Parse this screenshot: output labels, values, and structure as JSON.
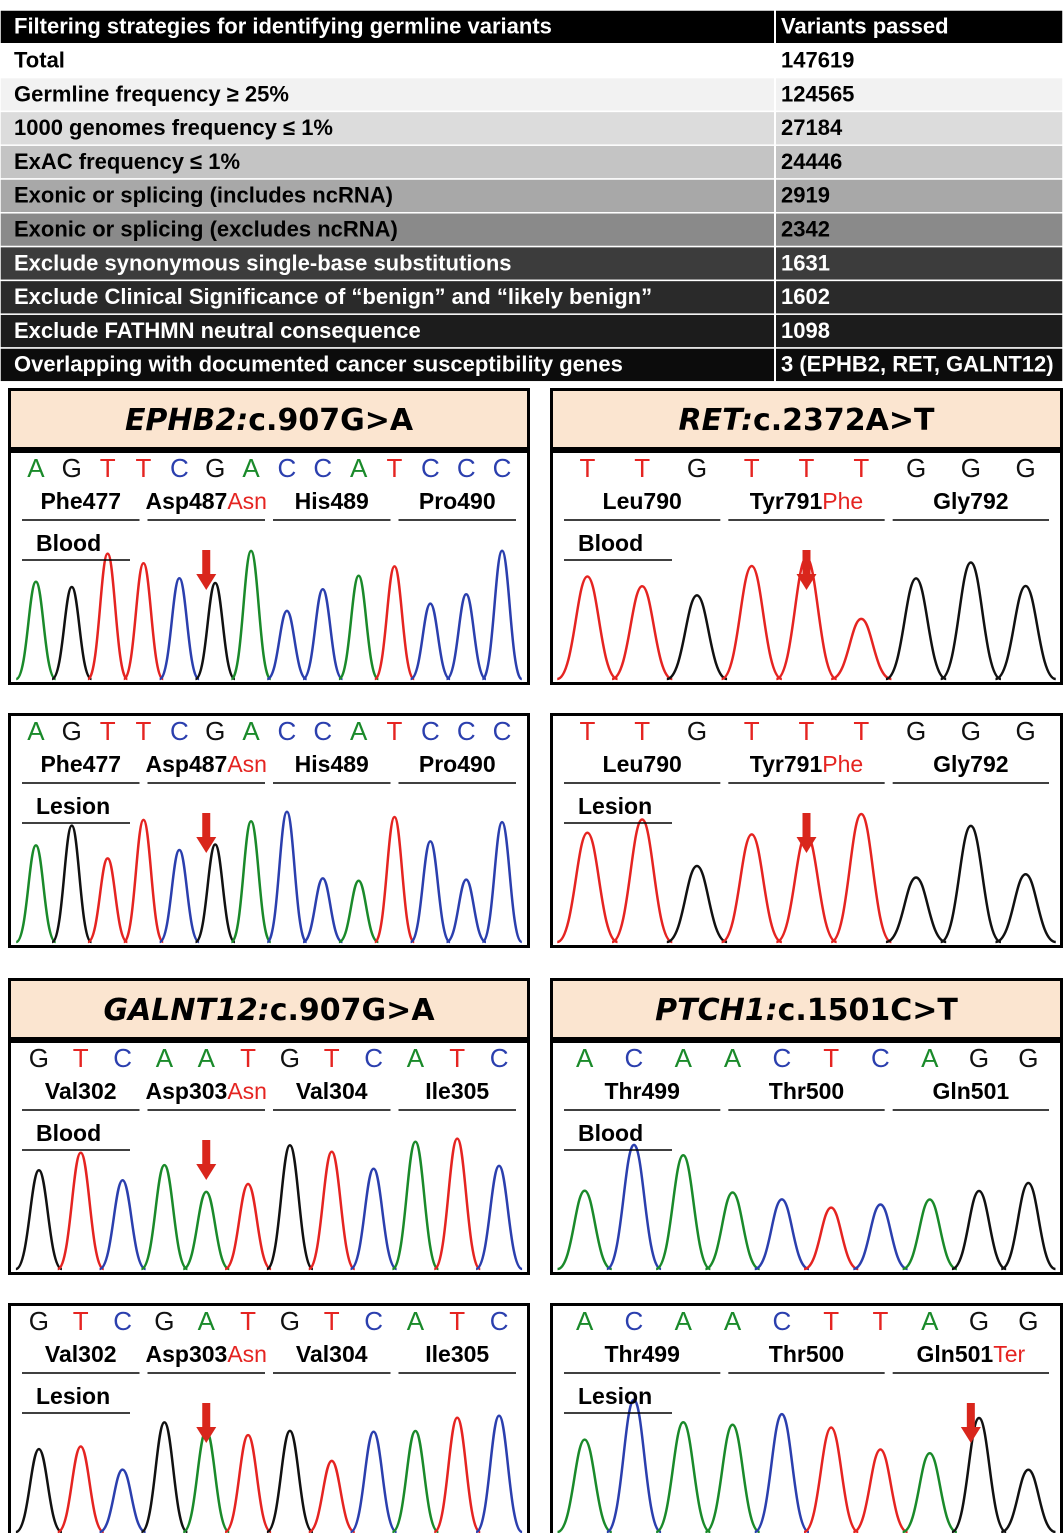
{
  "table": {
    "header": [
      "Filtering strategies for identifying germline variants",
      "Variants passed"
    ],
    "rows": [
      [
        "Total",
        "147619"
      ],
      [
        "Germline frequency ≥ 25%",
        "124565"
      ],
      [
        "1000 genomes frequency ≤ 1%",
        "27184"
      ],
      [
        "ExAC frequency ≤ 1%",
        "24446"
      ],
      [
        "Exonic or splicing (includes ncRNA)",
        "2919"
      ],
      [
        "Exonic or splicing (excludes ncRNA)",
        "2342"
      ],
      [
        "Exclude synonymous single-base substitutions",
        "1631"
      ],
      [
        "Exclude Clinical Significance of “benign” and “likely benign”",
        "1602"
      ],
      [
        "Exclude FATHMN neutral consequence",
        "1098"
      ],
      [
        "Overlapping with documented cancer susceptibility genes",
        "3 (EPHB2, RET, GALNT12)"
      ]
    ]
  },
  "panels": [
    {
      "gene": "EPHB2:",
      "change": "c.907G>A",
      "tracks": [
        {
          "sample": "Blood",
          "bases": [
            "A",
            "G",
            "T",
            "T",
            "C",
            "G",
            "A",
            "C",
            "C",
            "A",
            "T",
            "C",
            "C",
            "C"
          ],
          "amino_acids": [
            {
              "name": "Phe477"
            },
            {
              "name": "Asp487",
              "alt": "Asn"
            },
            {
              "name": "His489"
            },
            {
              "name": "Pro490"
            }
          ]
        },
        {
          "sample": "Lesion",
          "bases": [
            "A",
            "G",
            "T",
            "T",
            "C",
            "G",
            "A",
            "C",
            "C",
            "A",
            "T",
            "C",
            "C",
            "C"
          ],
          "amino_acids": [
            {
              "name": "Phe477"
            },
            {
              "name": "Asp487",
              "alt": "Asn"
            },
            {
              "name": "His489"
            },
            {
              "name": "Pro490"
            }
          ]
        }
      ]
    },
    {
      "gene": "RET:",
      "change": "c.2372A>T",
      "tracks": [
        {
          "sample": "Blood",
          "bases": [
            "T",
            "T",
            "G",
            "T",
            "T",
            "T",
            "G",
            "G",
            "G"
          ],
          "amino_acids": [
            {
              "name": "Leu790"
            },
            {
              "name": "Tyr791",
              "alt": "Phe"
            },
            {
              "name": "Gly792"
            }
          ]
        },
        {
          "sample": "Lesion",
          "bases": [
            "T",
            "T",
            "G",
            "T",
            "T",
            "T",
            "G",
            "G",
            "G"
          ],
          "amino_acids": [
            {
              "name": "Leu790"
            },
            {
              "name": "Tyr791",
              "alt": "Phe"
            },
            {
              "name": "Gly792"
            }
          ]
        }
      ]
    },
    {
      "gene": "GALNT12:",
      "change": "c.907G>A",
      "tracks": [
        {
          "sample": "Blood",
          "bases": [
            "G",
            "T",
            "C",
            "A",
            "A",
            "T",
            "G",
            "T",
            "C",
            "A",
            "T",
            "C"
          ],
          "amino_acids": [
            {
              "name": "Val302"
            },
            {
              "name": "Asp303",
              "alt": "Asn"
            },
            {
              "name": "Val304"
            },
            {
              "name": "Ile305"
            }
          ]
        },
        {
          "sample": "Lesion",
          "bases": [
            "G",
            "T",
            "C",
            "G",
            "A",
            "T",
            "G",
            "T",
            "C",
            "A",
            "T",
            "C"
          ],
          "amino_acids": [
            {
              "name": "Val302"
            },
            {
              "name": "Asp303",
              "alt": "Asn"
            },
            {
              "name": "Val304"
            },
            {
              "name": "Ile305"
            }
          ]
        }
      ]
    },
    {
      "gene": "PTCH1:",
      "change": "c.1501C>T",
      "tracks": [
        {
          "sample": "Blood",
          "bases": [
            "A",
            "C",
            "A",
            "A",
            "C",
            "T",
            "C",
            "A",
            "G",
            "G"
          ],
          "amino_acids": [
            {
              "name": "Thr499"
            },
            {
              "name": "Thr500"
            },
            {
              "name": "Gln501"
            }
          ]
        },
        {
          "sample": "Lesion",
          "bases": [
            "A",
            "C",
            "A",
            "A",
            "C",
            "T",
            "T",
            "A",
            "G",
            "G"
          ],
          "amino_acids": [
            {
              "name": "Thr499"
            },
            {
              "name": "Thr500"
            },
            {
              "name": "Gln501",
              "alt": "Ter"
            }
          ]
        }
      ]
    }
  ]
}
